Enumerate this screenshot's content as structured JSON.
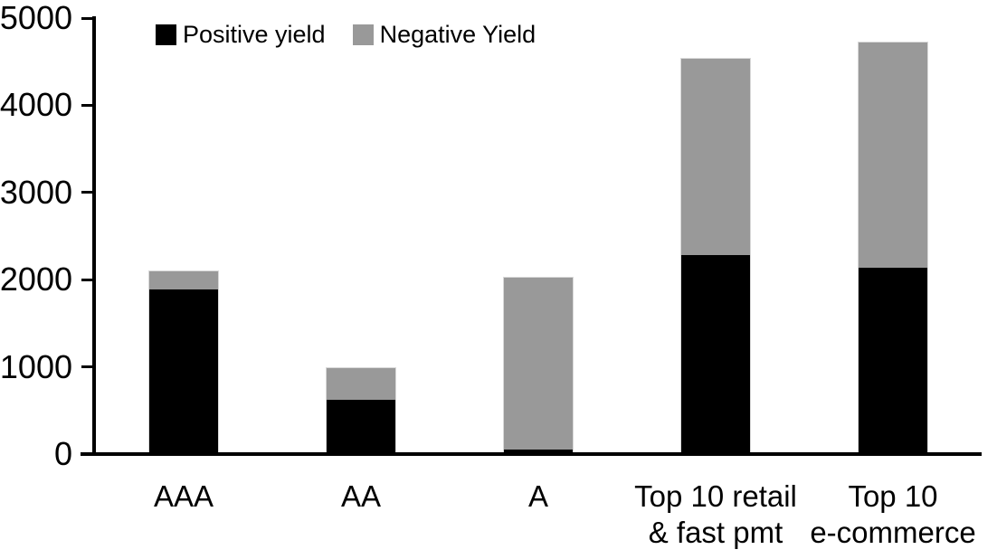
{
  "chart_data": {
    "type": "bar",
    "stacked": true,
    "title": "",
    "xlabel": "",
    "ylabel": "",
    "categories": [
      "AAA",
      "AA",
      "A",
      "Top 10 retail\n& fast pmt",
      "Top 10\ne-commerce"
    ],
    "series": [
      {
        "name": "Positive yield",
        "color": "#000000",
        "values": [
          1890,
          620,
          50,
          2280,
          2140
        ]
      },
      {
        "name": "Negative Yield",
        "color": "#999999",
        "values": [
          220,
          380,
          1980,
          2260,
          2590
        ]
      }
    ],
    "totals": [
      2110,
      1000,
      2030,
      4540,
      4730
    ],
    "ylim": [
      0,
      5000
    ],
    "yticks": [
      0,
      1000,
      2000,
      3000,
      4000,
      5000
    ],
    "grid": false,
    "legend_position": "top",
    "axis_color": "#000000",
    "bar_border_color": "#d9d9d9",
    "background_color": "#ffffff"
  }
}
